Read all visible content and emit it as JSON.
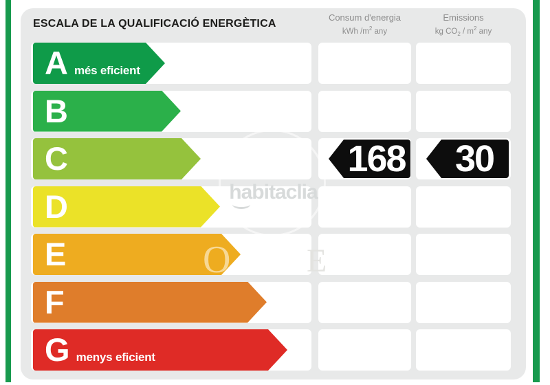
{
  "title": "ESCALA DE LA QUALIFICACIÓ ENERGÈTICA",
  "columns": {
    "consumption": {
      "name": "Consum d'energia",
      "unit_main": "kWh /m",
      "unit_sup": "2",
      "unit_tail": " any"
    },
    "emissions": {
      "name": "Emissions",
      "unit_main": "kg CO",
      "unit_sub": "2",
      "unit_mid": " / m",
      "unit_sup": "2",
      "unit_tail": " any"
    }
  },
  "ratings": [
    {
      "letter": "A",
      "label": "més eficient",
      "color": "#0f9b49",
      "arrow_width": 192
    },
    {
      "letter": "B",
      "label": "",
      "color": "#2bb04a",
      "arrow_width": 215
    },
    {
      "letter": "C",
      "label": "",
      "color": "#95c23d",
      "arrow_width": 244
    },
    {
      "letter": "D",
      "label": "",
      "color": "#ebe228",
      "arrow_width": 272
    },
    {
      "letter": "E",
      "label": "",
      "color": "#eeac20",
      "arrow_width": 302
    },
    {
      "letter": "F",
      "label": "",
      "color": "#df7d2b",
      "arrow_width": 340
    },
    {
      "letter": "G",
      "label": "menys eficient",
      "color": "#df2b26",
      "arrow_width": 370
    }
  ],
  "values": {
    "consumption": "168",
    "emissions": "30",
    "rating": "C"
  },
  "watermark": {
    "brand": "habitaclia",
    "letter_o": "O",
    "letter_e": "E"
  },
  "colors": {
    "frame_green": "#189a4e",
    "card_bg": "#e8e9e9",
    "value_black": "#0d0d0d",
    "title_text": "#1c1c1a",
    "header_text": "#8d8d8d"
  },
  "chart_data": {
    "type": "bar",
    "title": "ESCALA DE LA QUALIFICACIÓ ENERGÈTICA",
    "categories": [
      "A",
      "B",
      "C",
      "D",
      "E",
      "F",
      "G"
    ],
    "series": [
      {
        "name": "scale_arrow_relative_length_px",
        "values": [
          192,
          215,
          244,
          272,
          302,
          340,
          370
        ]
      }
    ],
    "category_colors": [
      "#0f9b49",
      "#2bb04a",
      "#95c23d",
      "#ebe228",
      "#eeac20",
      "#df7d2b",
      "#df2b26"
    ],
    "category_notes": {
      "A": "més eficient",
      "G": "menys eficient"
    },
    "annotations": [
      {
        "label": "Consum d'energia (kWh/m2 any)",
        "value": 168,
        "category": "C"
      },
      {
        "label": "Emissions (kg CO2/m2 any)",
        "value": 30,
        "category": "C"
      }
    ],
    "legend": false,
    "grid": false
  }
}
